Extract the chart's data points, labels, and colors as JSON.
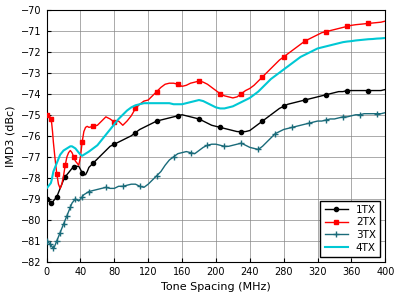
{
  "xlabel": "Tone Spacing (MHz)",
  "ylabel": "IMD3 (dBc)",
  "xlim": [
    0,
    400
  ],
  "ylim": [
    -82,
    -70
  ],
  "yticks": [
    -82,
    -81,
    -80,
    -79,
    -78,
    -77,
    -76,
    -75,
    -74,
    -73,
    -72,
    -71,
    -70
  ],
  "xticks": [
    0,
    40,
    80,
    120,
    160,
    200,
    240,
    280,
    320,
    360,
    400
  ],
  "colors": {
    "1TX": "#000000",
    "2TX": "#ff0000",
    "3TX": "#1a6b7a",
    "4TX": "#00c8d4"
  },
  "series": {
    "1TX": {
      "x": [
        0,
        1,
        2,
        3,
        4,
        5,
        6,
        7,
        8,
        10,
        12,
        14,
        16,
        18,
        20,
        22,
        24,
        26,
        28,
        30,
        32,
        34,
        36,
        38,
        40,
        42,
        44,
        46,
        48,
        50,
        55,
        60,
        65,
        70,
        75,
        80,
        85,
        90,
        95,
        100,
        105,
        110,
        115,
        120,
        125,
        130,
        135,
        140,
        145,
        150,
        155,
        160,
        165,
        170,
        175,
        180,
        185,
        190,
        195,
        200,
        205,
        210,
        215,
        220,
        225,
        230,
        235,
        240,
        245,
        250,
        255,
        260,
        265,
        270,
        275,
        280,
        285,
        290,
        295,
        300,
        305,
        310,
        315,
        320,
        325,
        330,
        335,
        340,
        345,
        350,
        355,
        360,
        365,
        370,
        375,
        380,
        385,
        390,
        395,
        400
      ],
      "y": [
        -79.0,
        -79.0,
        -79.0,
        -79.1,
        -79.1,
        -79.2,
        -79.2,
        -79.2,
        -79.1,
        -79.0,
        -78.9,
        -78.7,
        -78.5,
        -78.3,
        -78.1,
        -77.95,
        -77.85,
        -77.75,
        -77.65,
        -77.55,
        -77.5,
        -77.45,
        -77.45,
        -77.45,
        -77.6,
        -77.75,
        -77.85,
        -77.85,
        -77.7,
        -77.5,
        -77.3,
        -77.1,
        -76.9,
        -76.7,
        -76.5,
        -76.4,
        -76.3,
        -76.2,
        -76.1,
        -76.0,
        -75.85,
        -75.7,
        -75.6,
        -75.5,
        -75.4,
        -75.3,
        -75.25,
        -75.2,
        -75.15,
        -75.1,
        -75.05,
        -75.0,
        -75.05,
        -75.1,
        -75.15,
        -75.2,
        -75.3,
        -75.4,
        -75.5,
        -75.55,
        -75.6,
        -75.65,
        -75.7,
        -75.75,
        -75.8,
        -75.8,
        -75.8,
        -75.75,
        -75.6,
        -75.45,
        -75.3,
        -75.15,
        -75.0,
        -74.85,
        -74.7,
        -74.6,
        -74.5,
        -74.45,
        -74.4,
        -74.35,
        -74.3,
        -74.25,
        -74.2,
        -74.15,
        -74.1,
        -74.05,
        -74.0,
        -73.95,
        -73.9,
        -73.9,
        -73.85,
        -73.85,
        -73.85,
        -73.85,
        -73.85,
        -73.85,
        -73.85,
        -73.85,
        -73.85,
        -73.8
      ]
    },
    "2TX": {
      "x": [
        0,
        1,
        2,
        3,
        4,
        5,
        6,
        7,
        8,
        10,
        12,
        14,
        16,
        18,
        20,
        22,
        24,
        26,
        28,
        30,
        32,
        34,
        36,
        38,
        40,
        42,
        44,
        46,
        48,
        50,
        55,
        60,
        65,
        70,
        75,
        80,
        85,
        90,
        95,
        100,
        105,
        110,
        115,
        120,
        125,
        130,
        135,
        140,
        145,
        150,
        155,
        160,
        165,
        170,
        175,
        180,
        185,
        190,
        195,
        200,
        205,
        210,
        215,
        220,
        225,
        230,
        235,
        240,
        245,
        250,
        255,
        260,
        265,
        270,
        275,
        280,
        285,
        290,
        295,
        300,
        305,
        310,
        315,
        320,
        325,
        330,
        335,
        340,
        345,
        350,
        355,
        360,
        365,
        370,
        375,
        380,
        385,
        390,
        395,
        400
      ],
      "y": [
        -75.0,
        -75.0,
        -75.0,
        -75.05,
        -75.1,
        -75.2,
        -75.4,
        -75.8,
        -76.3,
        -77.1,
        -77.8,
        -78.3,
        -78.5,
        -78.3,
        -77.9,
        -77.4,
        -77.0,
        -76.8,
        -76.7,
        -76.8,
        -77.0,
        -77.2,
        -77.3,
        -77.4,
        -77.0,
        -76.3,
        -75.8,
        -75.6,
        -75.55,
        -75.6,
        -75.55,
        -75.5,
        -75.3,
        -75.1,
        -75.2,
        -75.35,
        -75.3,
        -75.5,
        -75.3,
        -75.05,
        -74.7,
        -74.5,
        -74.35,
        -74.3,
        -74.1,
        -73.9,
        -73.7,
        -73.55,
        -73.5,
        -73.5,
        -73.55,
        -73.65,
        -73.6,
        -73.5,
        -73.45,
        -73.4,
        -73.45,
        -73.55,
        -73.7,
        -73.85,
        -74.0,
        -74.1,
        -74.15,
        -74.2,
        -74.15,
        -74.0,
        -73.85,
        -73.75,
        -73.6,
        -73.4,
        -73.2,
        -73.0,
        -72.8,
        -72.6,
        -72.4,
        -72.25,
        -72.1,
        -71.95,
        -71.8,
        -71.65,
        -71.5,
        -71.4,
        -71.3,
        -71.2,
        -71.1,
        -71.05,
        -71.0,
        -70.95,
        -70.9,
        -70.85,
        -70.8,
        -70.75,
        -70.72,
        -70.7,
        -70.68,
        -70.66,
        -70.64,
        -70.62,
        -70.6,
        -70.55
      ]
    },
    "3TX": {
      "x": [
        0,
        1,
        2,
        3,
        4,
        5,
        6,
        7,
        8,
        9,
        10,
        11,
        12,
        13,
        14,
        15,
        16,
        17,
        18,
        19,
        20,
        21,
        22,
        23,
        24,
        25,
        26,
        27,
        28,
        29,
        30,
        32,
        34,
        36,
        38,
        40,
        42,
        44,
        46,
        48,
        50,
        55,
        60,
        65,
        70,
        75,
        80,
        85,
        90,
        95,
        100,
        105,
        110,
        115,
        120,
        125,
        130,
        135,
        140,
        145,
        150,
        155,
        160,
        165,
        170,
        175,
        180,
        185,
        190,
        195,
        200,
        205,
        210,
        215,
        220,
        225,
        230,
        235,
        240,
        245,
        250,
        255,
        260,
        265,
        270,
        275,
        280,
        285,
        290,
        295,
        300,
        305,
        310,
        315,
        320,
        325,
        330,
        335,
        340,
        345,
        350,
        355,
        360,
        365,
        370,
        375,
        380,
        385,
        390,
        395,
        400
      ],
      "y": [
        -81.0,
        -81.0,
        -81.05,
        -81.1,
        -81.15,
        -81.2,
        -81.25,
        -81.3,
        -81.35,
        -81.3,
        -81.2,
        -81.1,
        -81.0,
        -80.9,
        -80.8,
        -80.7,
        -80.6,
        -80.5,
        -80.4,
        -80.3,
        -80.2,
        -80.1,
        -80.0,
        -79.9,
        -79.8,
        -79.7,
        -79.6,
        -79.5,
        -79.4,
        -79.3,
        -79.2,
        -79.1,
        -79.0,
        -79.05,
        -79.1,
        -79.0,
        -78.9,
        -78.8,
        -78.75,
        -78.7,
        -78.65,
        -78.6,
        -78.55,
        -78.5,
        -78.45,
        -78.5,
        -78.5,
        -78.4,
        -78.4,
        -78.35,
        -78.3,
        -78.3,
        -78.4,
        -78.45,
        -78.3,
        -78.1,
        -77.9,
        -77.7,
        -77.4,
        -77.15,
        -77.0,
        -76.85,
        -76.8,
        -76.75,
        -76.8,
        -76.85,
        -76.7,
        -76.55,
        -76.45,
        -76.4,
        -76.4,
        -76.45,
        -76.5,
        -76.5,
        -76.45,
        -76.4,
        -76.35,
        -76.45,
        -76.55,
        -76.6,
        -76.65,
        -76.5,
        -76.3,
        -76.1,
        -75.9,
        -75.8,
        -75.7,
        -75.65,
        -75.6,
        -75.55,
        -75.5,
        -75.45,
        -75.4,
        -75.35,
        -75.3,
        -75.3,
        -75.25,
        -75.2,
        -75.2,
        -75.15,
        -75.1,
        -75.1,
        -75.05,
        -75.0,
        -75.0,
        -74.95,
        -74.95,
        -74.95,
        -74.95,
        -74.95,
        -74.9
      ]
    },
    "4TX": {
      "x": [
        0,
        1,
        2,
        3,
        4,
        5,
        6,
        7,
        8,
        10,
        12,
        14,
        16,
        18,
        20,
        22,
        24,
        26,
        28,
        30,
        32,
        34,
        36,
        38,
        40,
        42,
        44,
        46,
        48,
        50,
        55,
        60,
        65,
        70,
        75,
        80,
        85,
        90,
        95,
        100,
        105,
        110,
        115,
        120,
        125,
        130,
        135,
        140,
        145,
        150,
        155,
        160,
        165,
        170,
        175,
        180,
        185,
        190,
        195,
        200,
        205,
        210,
        215,
        220,
        225,
        230,
        235,
        240,
        245,
        250,
        255,
        260,
        265,
        270,
        275,
        280,
        285,
        290,
        295,
        300,
        305,
        310,
        315,
        320,
        325,
        330,
        335,
        340,
        345,
        350,
        355,
        360,
        365,
        370,
        375,
        380,
        385,
        390,
        395,
        400
      ],
      "y": [
        -78.5,
        -78.45,
        -78.4,
        -78.35,
        -78.3,
        -78.25,
        -78.1,
        -77.9,
        -77.7,
        -77.5,
        -77.3,
        -77.1,
        -76.9,
        -76.8,
        -76.7,
        -76.65,
        -76.6,
        -76.55,
        -76.5,
        -76.5,
        -76.55,
        -76.6,
        -76.7,
        -76.8,
        -76.9,
        -76.95,
        -76.9,
        -76.85,
        -76.8,
        -76.75,
        -76.6,
        -76.45,
        -76.2,
        -75.95,
        -75.7,
        -75.45,
        -75.2,
        -75.0,
        -74.8,
        -74.65,
        -74.55,
        -74.5,
        -74.45,
        -74.45,
        -74.45,
        -74.45,
        -74.45,
        -74.45,
        -74.45,
        -74.5,
        -74.5,
        -74.5,
        -74.45,
        -74.4,
        -74.35,
        -74.3,
        -74.35,
        -74.45,
        -74.55,
        -74.65,
        -74.7,
        -74.7,
        -74.65,
        -74.6,
        -74.5,
        -74.4,
        -74.3,
        -74.2,
        -74.05,
        -73.9,
        -73.7,
        -73.5,
        -73.3,
        -73.15,
        -73.0,
        -72.85,
        -72.7,
        -72.55,
        -72.4,
        -72.25,
        -72.15,
        -72.05,
        -71.95,
        -71.85,
        -71.8,
        -71.75,
        -71.7,
        -71.65,
        -71.6,
        -71.55,
        -71.52,
        -71.5,
        -71.47,
        -71.45,
        -71.43,
        -71.41,
        -71.4,
        -71.38,
        -71.37,
        -71.35
      ]
    }
  },
  "legend_order": [
    "1TX",
    "2TX",
    "3TX",
    "4TX"
  ],
  "bg_color": "#ffffff"
}
